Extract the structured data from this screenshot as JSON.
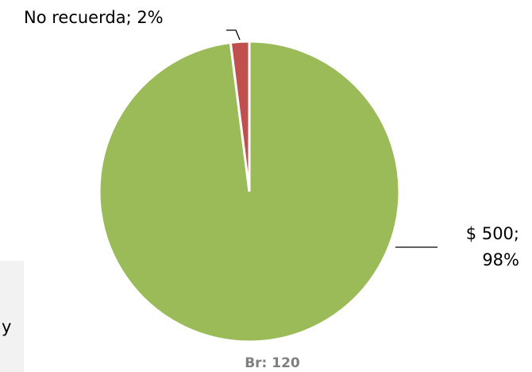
{
  "chart_data": {
    "type": "pie",
    "values": [
      98,
      2
    ],
    "value_labels": [
      "$ 500; 98%",
      "No recuerda; 2%"
    ],
    "colors": [
      "#9bbb59",
      "#c0504d"
    ],
    "note": "Br: 120",
    "side_text": "y"
  }
}
